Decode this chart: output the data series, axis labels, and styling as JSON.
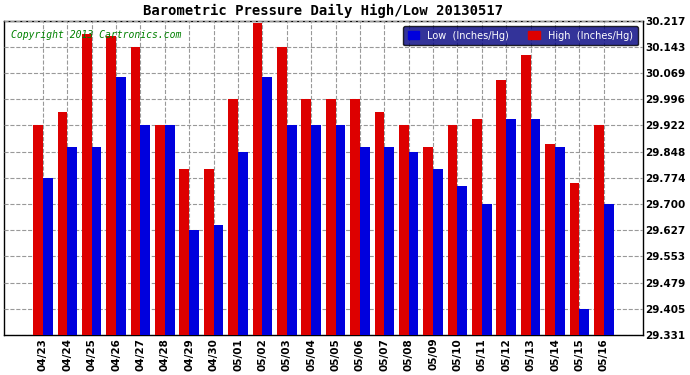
{
  "title": "Barometric Pressure Daily High/Low 20130517",
  "copyright": "Copyright 2013 Cartronics.com",
  "legend_low": "Low  (Inches/Hg)",
  "legend_high": "High  (Inches/Hg)",
  "low_color": "#0000dd",
  "high_color": "#dd0000",
  "background_color": "#ffffff",
  "plot_bg_color": "#ffffff",
  "ylim_min": 29.331,
  "ylim_max": 30.217,
  "yticks": [
    29.331,
    29.405,
    29.479,
    29.553,
    29.627,
    29.7,
    29.774,
    29.848,
    29.922,
    29.996,
    30.069,
    30.143,
    30.217
  ],
  "dates": [
    "04/23",
    "04/24",
    "04/25",
    "04/26",
    "04/27",
    "04/28",
    "04/29",
    "04/30",
    "05/01",
    "05/02",
    "05/03",
    "05/04",
    "05/05",
    "05/06",
    "05/07",
    "05/08",
    "05/09",
    "05/10",
    "05/11",
    "05/12",
    "05/13",
    "05/14",
    "05/15",
    "05/16"
  ],
  "high_values": [
    29.922,
    29.96,
    30.18,
    30.175,
    30.143,
    29.922,
    29.8,
    29.8,
    29.996,
    30.21,
    30.143,
    29.996,
    29.996,
    29.996,
    29.96,
    29.922,
    29.86,
    29.922,
    29.94,
    30.05,
    30.12,
    29.87,
    29.76,
    29.922
  ],
  "low_values": [
    29.774,
    29.86,
    29.86,
    30.06,
    29.922,
    29.922,
    29.627,
    29.64,
    29.848,
    30.06,
    29.922,
    29.922,
    29.922,
    29.86,
    29.86,
    29.848,
    29.8,
    29.75,
    29.7,
    29.94,
    29.94,
    29.86,
    29.405,
    29.7
  ]
}
